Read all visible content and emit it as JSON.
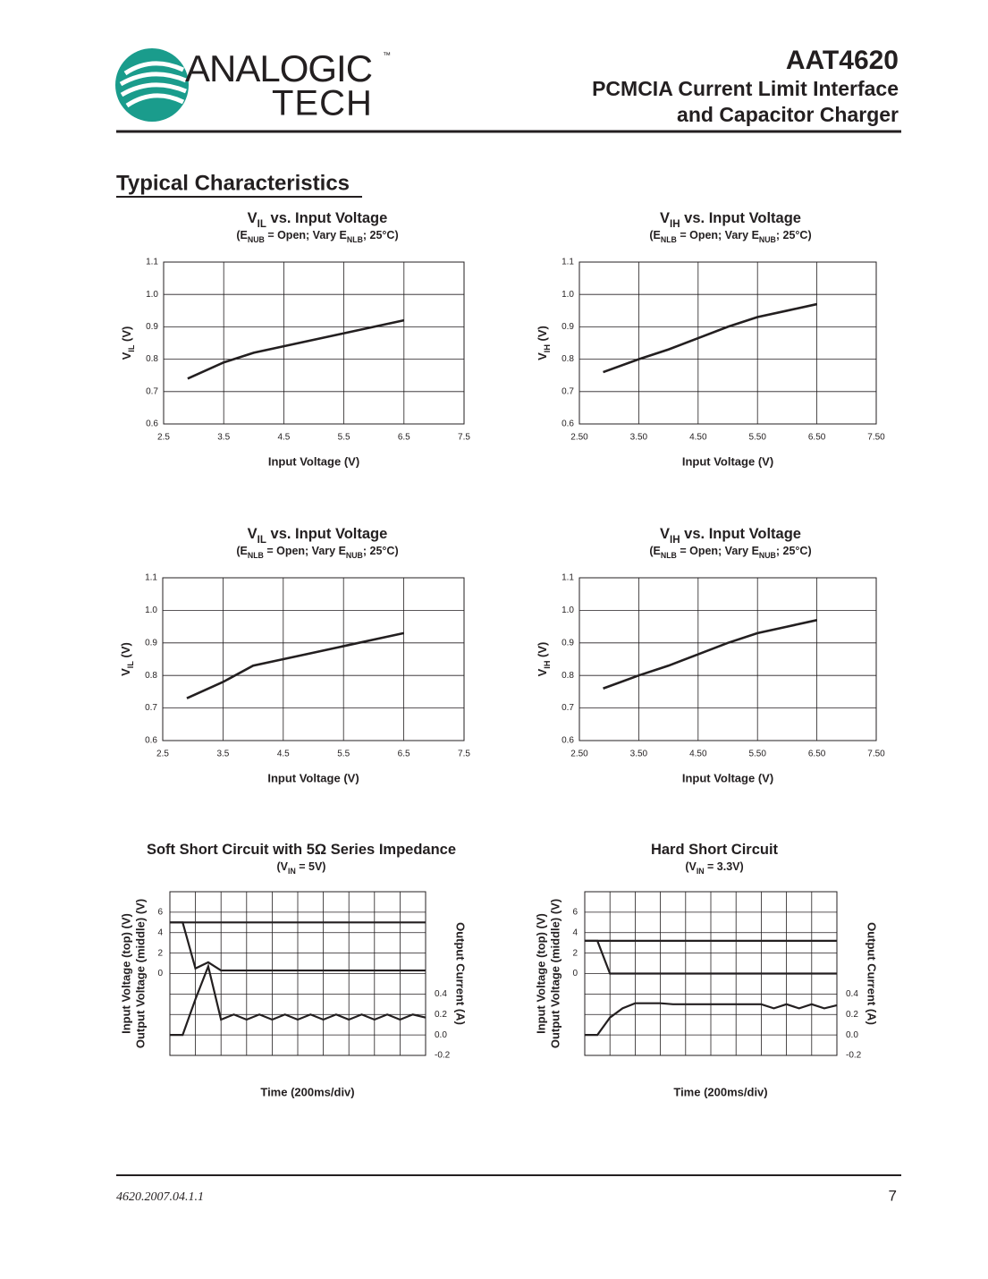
{
  "header": {
    "logo_top": "ANALOGIC",
    "logo_bottom": "TECH",
    "logo_mark": "™",
    "part": "AAT4620",
    "title_lines": [
      "PCMCIA Current Limit Interface",
      "and Capacitor Charger"
    ]
  },
  "section_title": "Typical Characteristics",
  "chart_data": [
    {
      "type": "line",
      "title": [
        "V",
        "IL",
        " vs. Input Voltage"
      ],
      "subtitle": [
        "(E",
        "NUB",
        " = Open; Vary E",
        "NLB",
        ";  25°C)"
      ],
      "y_label": [
        "V",
        "IL",
        " (V)"
      ],
      "x_label": "Input Voltage (V)",
      "x": [
        2.9,
        3.5,
        4,
        4.5,
        5,
        5.5,
        6,
        6.5
      ],
      "values": [
        0.74,
        0.79,
        0.82,
        0.84,
        0.86,
        0.88,
        0.9,
        0.92
      ],
      "color": "#231f20",
      "xlim": [
        2.5,
        7.5
      ],
      "xticks": [
        2.5,
        3.5,
        4.5,
        5.5,
        6.5,
        7.5
      ],
      "ylim": [
        0.6,
        1.1
      ],
      "yticks": [
        0.6,
        0.7,
        0.8,
        0.9,
        {
          "value": 1,
          "label": "1.0"
        },
        1.1
      ],
      "grid": true
    },
    {
      "type": "line",
      "title": [
        "V",
        "IH",
        " vs. Input Voltage"
      ],
      "subtitle": [
        "(E",
        "NLB",
        " = Open; Vary E",
        "NUB",
        ";  25°C)"
      ],
      "y_label": [
        "V",
        "IH",
        " (V)"
      ],
      "x_label": "Input Voltage (V)",
      "x": [
        2.9,
        3.5,
        4,
        4.5,
        5,
        5.5,
        6,
        6.5
      ],
      "values": [
        0.76,
        0.8,
        0.83,
        0.865,
        0.9,
        0.93,
        0.95,
        0.97
      ],
      "color": "#231f20",
      "xlim": [
        2.5,
        7.5
      ],
      "xticks": [
        {
          "value": 2.5,
          "label": "2.50"
        },
        {
          "value": 3.5,
          "label": "3.50"
        },
        {
          "value": 4.5,
          "label": "4.50"
        },
        {
          "value": 5.5,
          "label": "5.50"
        },
        {
          "value": 6.5,
          "label": "6.50"
        },
        {
          "value": 7.5,
          "label": "7.50"
        }
      ],
      "ylim": [
        0.6,
        1.1
      ],
      "yticks": [
        0.6,
        0.7,
        0.8,
        0.9,
        {
          "value": 1,
          "label": "1.0"
        },
        1.1
      ],
      "grid": true
    },
    {
      "type": "line",
      "title": [
        "V",
        "IL",
        " vs. Input Voltage"
      ],
      "subtitle": [
        "(E",
        "NLB",
        " = Open; Vary E",
        "NUB",
        ";  25°C)"
      ],
      "y_label": [
        "V",
        "IL",
        " (V)"
      ],
      "x_label": "Input Voltage (V)",
      "x": [
        2.9,
        3.5,
        4,
        4.5,
        5,
        5.5,
        6,
        6.5
      ],
      "values": [
        0.73,
        0.78,
        0.83,
        0.85,
        0.87,
        0.89,
        0.91,
        0.93
      ],
      "color": "#231f20",
      "xlim": [
        2.5,
        7.5
      ],
      "xticks": [
        2.5,
        3.5,
        4.5,
        5.5,
        6.5,
        7.5
      ],
      "ylim": [
        0.6,
        1.1
      ],
      "yticks": [
        0.6,
        0.7,
        0.8,
        0.9,
        {
          "value": 1,
          "label": "1.0"
        },
        1.1
      ],
      "grid": true
    },
    {
      "type": "line",
      "title": [
        "V",
        "IH",
        " vs. Input Voltage"
      ],
      "subtitle": [
        "(E",
        "NLB",
        " = Open; Vary E",
        "NUB",
        ";  25°C)"
      ],
      "y_label": [
        "V",
        "IH",
        " (V)"
      ],
      "x_label": "Input Voltage (V)",
      "x": [
        2.9,
        3.5,
        4,
        4.5,
        5,
        5.5,
        6,
        6.5
      ],
      "values": [
        0.76,
        0.8,
        0.83,
        0.865,
        0.9,
        0.93,
        0.95,
        0.97
      ],
      "color": "#231f20",
      "xlim": [
        2.5,
        7.5
      ],
      "xticks": [
        {
          "value": 2.5,
          "label": "2.50"
        },
        {
          "value": 3.5,
          "label": "3.50"
        },
        {
          "value": 4.5,
          "label": "4.50"
        },
        {
          "value": 5.5,
          "label": "5.50"
        },
        {
          "value": 6.5,
          "label": "6.50"
        },
        {
          "value": 7.5,
          "label": "7.50"
        }
      ],
      "ylim": [
        0.6,
        1.1
      ],
      "yticks": [
        0.6,
        0.7,
        0.8,
        0.9,
        {
          "value": 1,
          "label": "1.0"
        },
        1.1
      ],
      "grid": true
    },
    {
      "type": "scope",
      "title": [
        "Soft Short Circuit with 5Ω Series Impedance"
      ],
      "subtitle": [
        "(V",
        "IN",
        " = 5V)"
      ],
      "y_label_lines": [
        "Input Voltage (top) (V)",
        "Output Voltage (middle) (V)"
      ],
      "y2_label": "Output Current (A)",
      "x_label": "Time (200ms/div)",
      "categories": [
        null,
        null,
        null,
        null,
        null,
        null,
        null,
        null,
        null,
        null,
        null,
        null,
        null,
        null,
        null,
        null,
        null,
        null,
        null,
        null,
        null
      ],
      "series": [
        {
          "color": "#231f20",
          "values": [
            5,
            5,
            5,
            5,
            5,
            5,
            5,
            5,
            5,
            5,
            5,
            5,
            5,
            5,
            5,
            5,
            5,
            5,
            5,
            5,
            5
          ]
        },
        {
          "color": "#231f20",
          "values": [
            5,
            5,
            0.5,
            1.1,
            0.3,
            0.3,
            0.3,
            0.3,
            0.3,
            0.3,
            0.3,
            0.3,
            0.3,
            0.3,
            0.3,
            0.3,
            0.3,
            0.3,
            0.3,
            0.3,
            0.3
          ]
        },
        {
          "color": "#231f20",
          "axis": "y2",
          "values": [
            0,
            0,
            0.35,
            0.67,
            0.15,
            0.2,
            0.15,
            0.2,
            0.15,
            0.2,
            0.15,
            0.2,
            0.15,
            0.2,
            0.15,
            0.2,
            0.15,
            0.2,
            0.15,
            0.2,
            0.17
          ]
        }
      ],
      "ylim": [
        -8,
        8
      ],
      "yticks": [
        0,
        2,
        4,
        6
      ],
      "y2lim": [
        -0.2,
        1.4
      ],
      "y2ticks": [
        -0.2,
        {
          "value": 0,
          "label": "0.0"
        },
        0.2,
        0.4
      ],
      "grid": true
    },
    {
      "type": "scope",
      "title": [
        "Hard Short Circuit"
      ],
      "subtitle": [
        "(V",
        "IN",
        " = 3.3V)"
      ],
      "y_label_lines": [
        "Input Voltage (top) (V)",
        "Output Voltage (middle) (V)"
      ],
      "y2_label": "Output Current (A)",
      "x_label": "Time (200ms/div)",
      "categories": [
        null,
        null,
        null,
        null,
        null,
        null,
        null,
        null,
        null,
        null,
        null,
        null,
        null,
        null,
        null,
        null,
        null,
        null,
        null,
        null,
        null
      ],
      "series": [
        {
          "color": "#231f20",
          "values": [
            3.2,
            3.2,
            3.2,
            3.2,
            3.2,
            3.2,
            3.2,
            3.2,
            3.2,
            3.2,
            3.2,
            3.2,
            3.2,
            3.2,
            3.2,
            3.2,
            3.2,
            3.2,
            3.2,
            3.2,
            3.2
          ]
        },
        {
          "color": "#231f20",
          "values": [
            3.2,
            3.2,
            0,
            0,
            0,
            0,
            0,
            0,
            0,
            0,
            0,
            0,
            0,
            0,
            0,
            0,
            0,
            0,
            0,
            0,
            0
          ]
        },
        {
          "color": "#231f20",
          "axis": "y2",
          "values": [
            0,
            0,
            0.17,
            0.26,
            0.31,
            0.31,
            0.31,
            0.3,
            0.3,
            0.3,
            0.3,
            0.3,
            0.3,
            0.3,
            0.3,
            0.26,
            0.3,
            0.26,
            0.3,
            0.26,
            0.29
          ]
        }
      ],
      "ylim": [
        -8,
        8
      ],
      "yticks": [
        0,
        2,
        4,
        6
      ],
      "y2lim": [
        -0.2,
        1.4
      ],
      "y2ticks": [
        -0.2,
        {
          "value": 0,
          "label": "0.0"
        },
        0.2,
        0.4
      ],
      "grid": true
    }
  ],
  "footer": {
    "doc_id": "4620.2007.04.1.1",
    "page": "7"
  }
}
